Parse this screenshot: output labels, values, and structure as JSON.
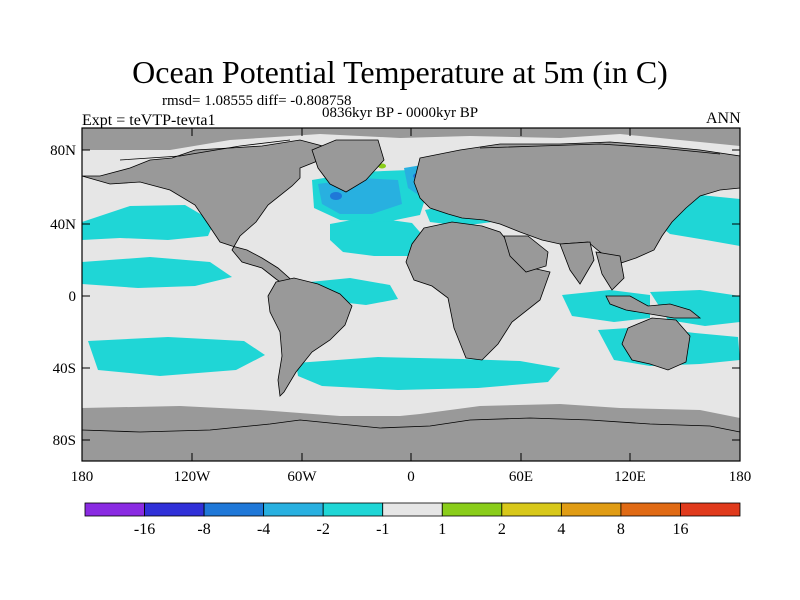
{
  "header": {
    "title": "Ocean Potential Temperature at 5m (in C)",
    "stats": "rmsd= 1.08555 diff= -0.808758",
    "period": "0836kyr BP - 0000kyr BP",
    "experiment": "Expt = teVTP-tevta1",
    "season": "ANN"
  },
  "map": {
    "lat_ticks": [
      "80N",
      "40N",
      "0",
      "40S",
      "80S"
    ],
    "lon_ticks": [
      "180",
      "120W",
      "60W",
      "0",
      "60E",
      "120E",
      "180"
    ],
    "colors": {
      "land": "#999999",
      "ocean_near_zero": "#e6e6e6",
      "coastline": "#000000"
    }
  },
  "colorbar": {
    "labels": [
      "-16",
      "-8",
      "-4",
      "-2",
      "-1",
      "1",
      "2",
      "4",
      "8",
      "16"
    ],
    "colors": [
      "#8a2be2",
      "#3030d8",
      "#1f78d8",
      "#28b0e0",
      "#1fd6d6",
      "#e6e6e6",
      "#8acd1a",
      "#d8c81a",
      "#e09c14",
      "#e06a14",
      "#e03a1c"
    ]
  }
}
